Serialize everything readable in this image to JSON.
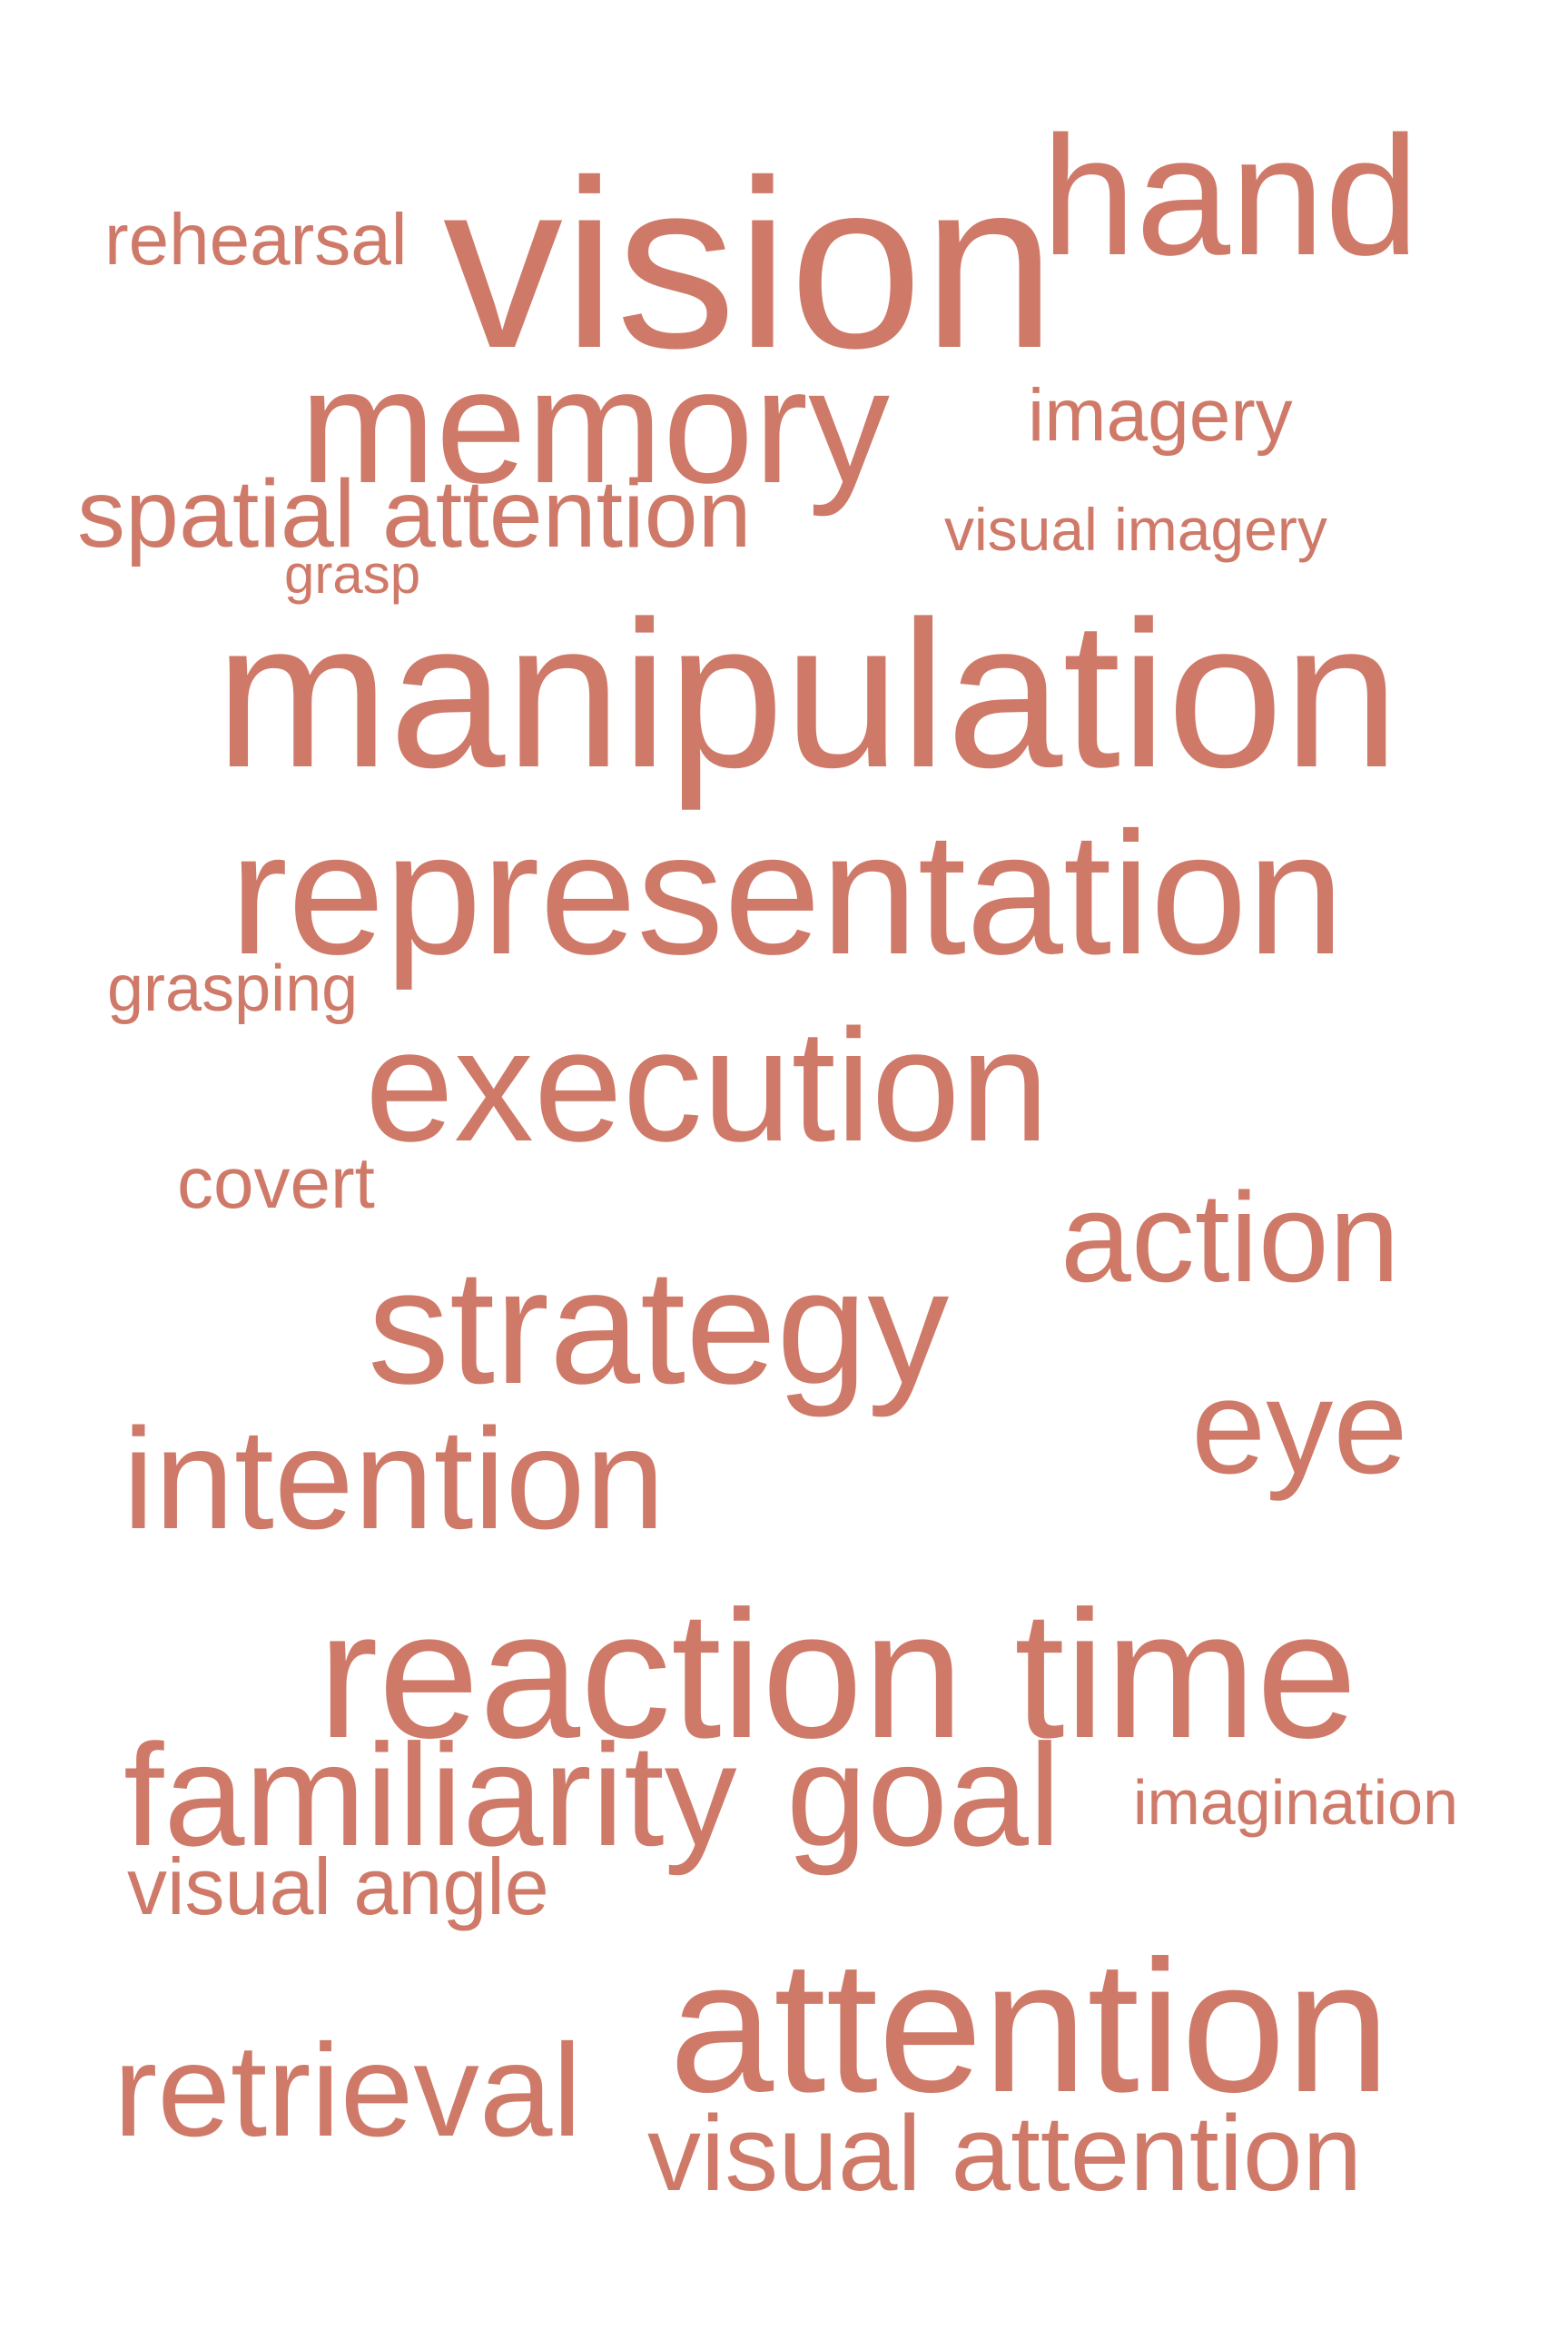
{
  "theme": {
    "word_color": "#cf7a69",
    "background": "#ffffff"
  },
  "words": [
    {
      "text": "hand"
    },
    {
      "text": "vision"
    },
    {
      "text": "rehearsal"
    },
    {
      "text": "memory"
    },
    {
      "text": "imagery"
    },
    {
      "text": "spatial attention"
    },
    {
      "text": "visual imagery"
    },
    {
      "text": "grasp"
    },
    {
      "text": "manipulation"
    },
    {
      "text": "representation"
    },
    {
      "text": "grasping"
    },
    {
      "text": "execution"
    },
    {
      "text": "covert"
    },
    {
      "text": "action"
    },
    {
      "text": "strategy"
    },
    {
      "text": "eye"
    },
    {
      "text": "intention"
    },
    {
      "text": "reaction time"
    },
    {
      "text": "familiarity"
    },
    {
      "text": "goal"
    },
    {
      "text": "imagination"
    },
    {
      "text": "visual angle"
    },
    {
      "text": "attention"
    },
    {
      "text": "retrieval"
    },
    {
      "text": "visual attention"
    }
  ]
}
